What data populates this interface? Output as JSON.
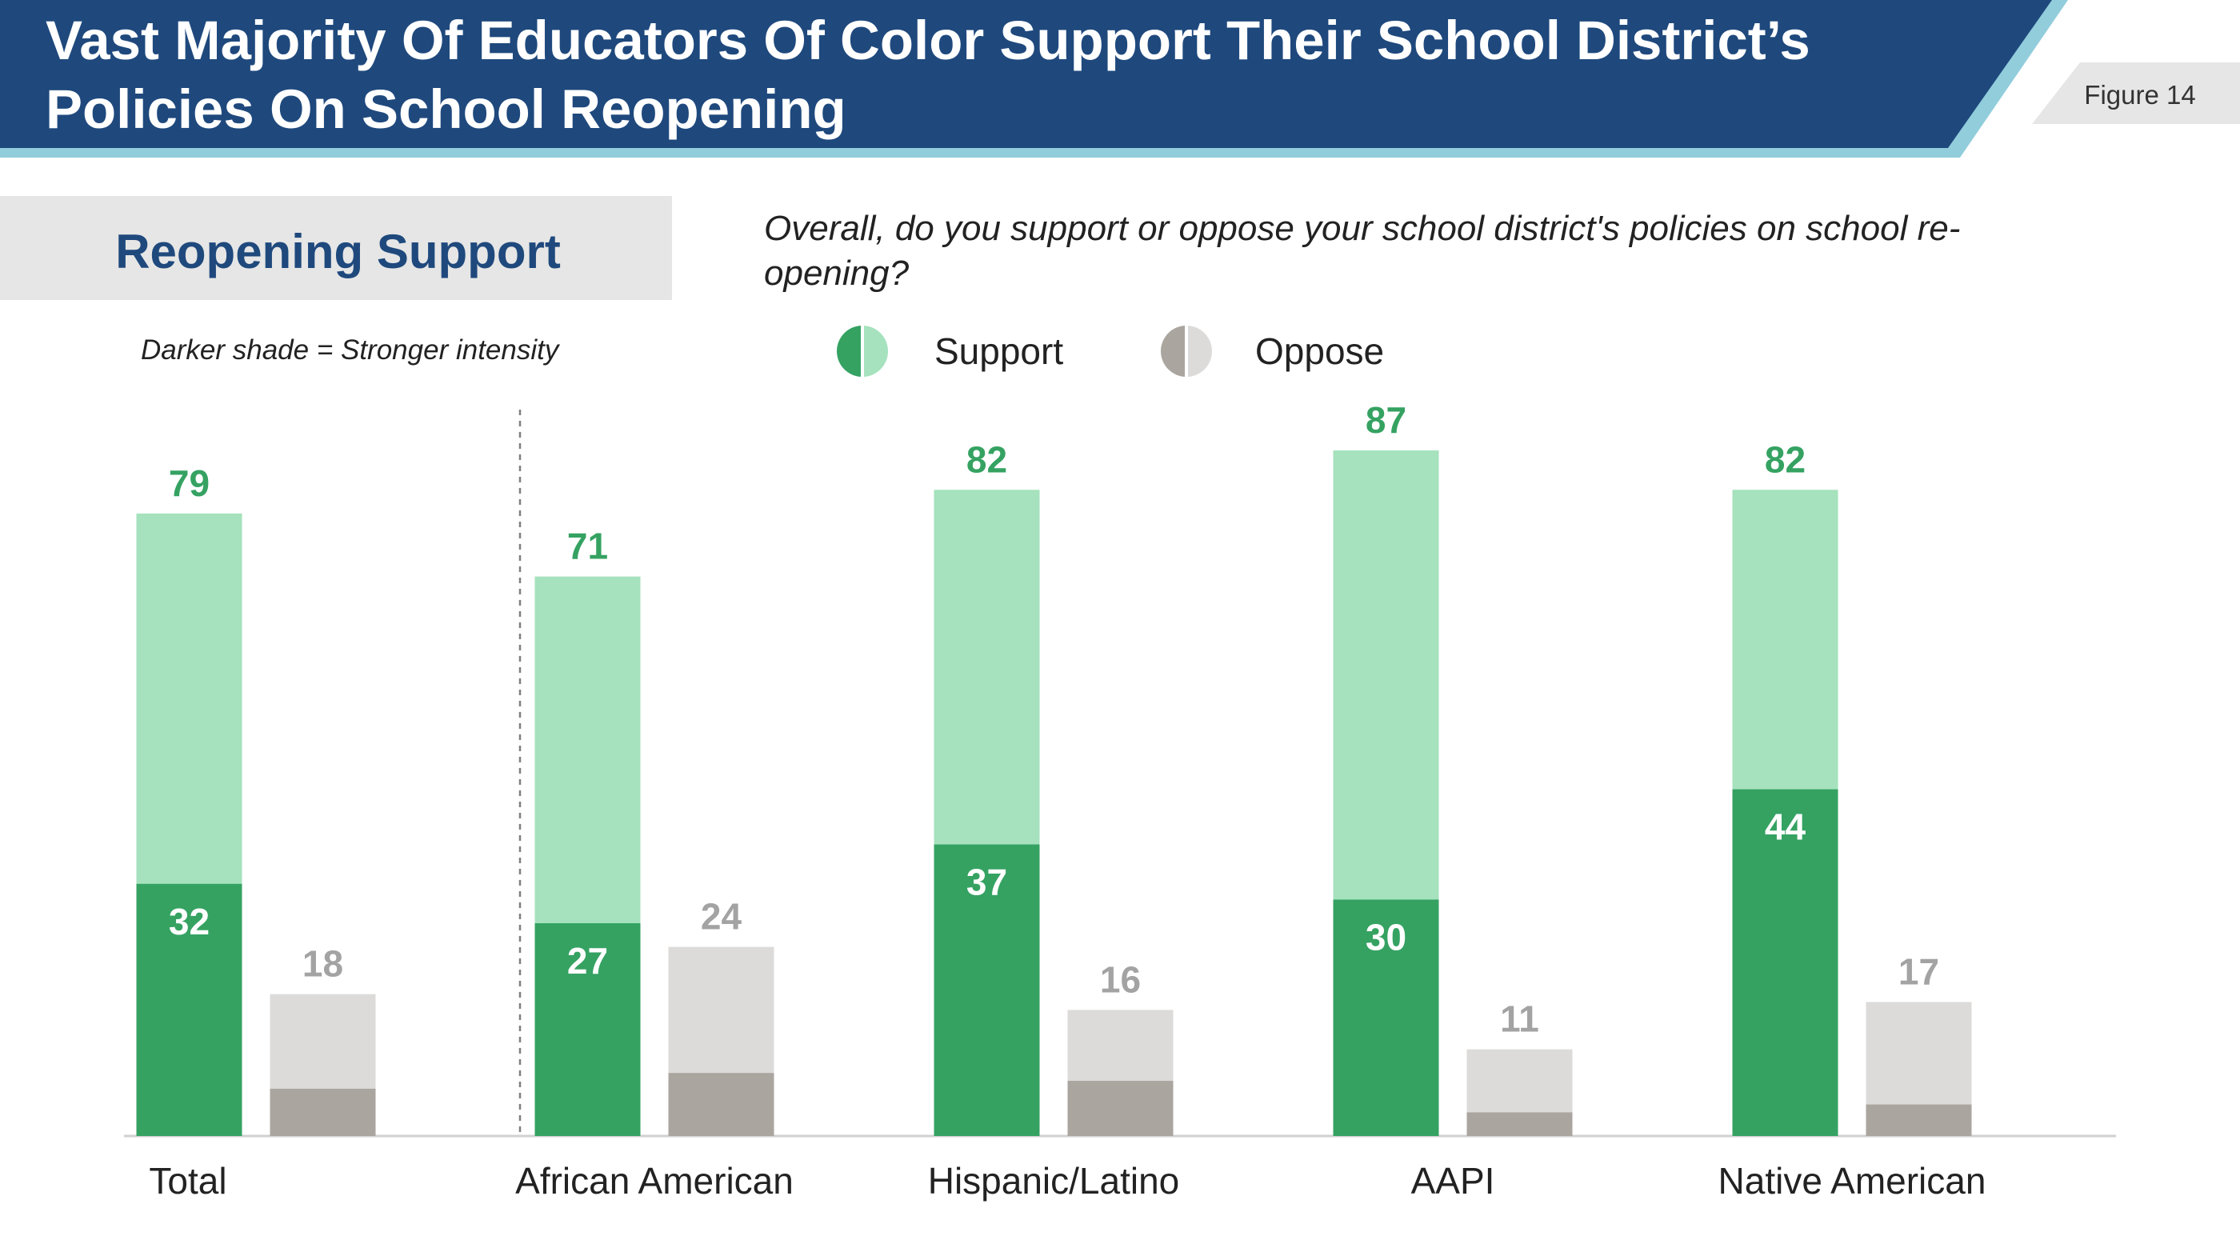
{
  "header": {
    "title_line1": "Vast Majority Of Educators Of Color Support Their School District’s",
    "title_line2": "Policies On School Reopening",
    "figure_label": "Figure 14"
  },
  "section": {
    "title": "Reopening Support",
    "intensity_note": "Darker shade = Stronger intensity"
  },
  "question": "Overall, do you support or oppose your school district's policies on school re-opening?",
  "legend": {
    "support": "Support",
    "oppose": "Oppose"
  },
  "colors": {
    "header_blue": "#1f497d",
    "header_accent": "#92cddc",
    "support_strong": "#35a262",
    "support_total": "#a5e2bd",
    "oppose_strong": "#aaa59f",
    "oppose_total": "#dcdbda",
    "oppose_label": "#a3a3a3"
  },
  "chart_data": {
    "type": "bar",
    "categories": [
      "Total",
      "African American",
      "Hispanic/Latino",
      "AAPI",
      "Native American"
    ],
    "series": [
      {
        "name": "Support",
        "values": [
          79,
          71,
          82,
          87,
          82
        ]
      },
      {
        "name": "Oppose",
        "values": [
          18,
          24,
          16,
          11,
          17
        ]
      }
    ],
    "strong_support": [
      32,
      27,
      37,
      30,
      44
    ],
    "strong_oppose_unlabeled": [
      6,
      8,
      7,
      3,
      4
    ],
    "ylim": [
      0,
      100
    ],
    "grid": false,
    "legend_position": "top"
  }
}
